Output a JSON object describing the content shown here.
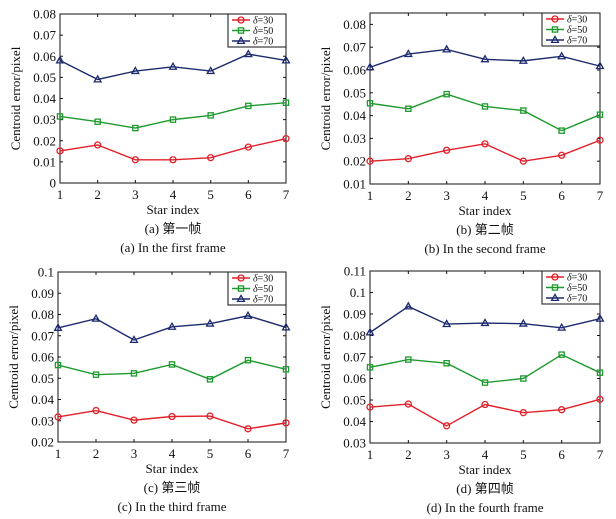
{
  "figure": {
    "series_styles": [
      {
        "name_prefix": "δ",
        "label": "=30",
        "color": "#e0202a",
        "marker": "circle"
      },
      {
        "name_prefix": "δ",
        "label": "=50",
        "color": "#1e9a2e",
        "marker": "square"
      },
      {
        "name_prefix": "δ",
        "label": "=70",
        "color": "#1c2a6e",
        "marker": "triangle"
      }
    ]
  },
  "chart_data": [
    {
      "type": "line",
      "id": "a",
      "caption_cn": "(a) 第一帧",
      "caption_en": "(a) In the first frame",
      "xlabel": "Star index",
      "ylabel": "Centroid error/pixel",
      "x": [
        1,
        2,
        3,
        4,
        5,
        6,
        7
      ],
      "xticks": [
        "1",
        "2",
        "3",
        "4",
        "5",
        "6",
        "7"
      ],
      "ylim": [
        0,
        0.08
      ],
      "yticks": [
        0,
        0.01,
        0.02,
        0.03,
        0.04,
        0.05,
        0.06,
        0.07,
        0.08
      ],
      "ytick_labels": [
        "0",
        "0.01",
        "0.02",
        "0.03",
        "0.04",
        "0.05",
        "0.06",
        "0.07",
        "0.08"
      ],
      "legend_position": "top-right",
      "grid": false,
      "series": [
        {
          "name": "δ=30",
          "values": [
            0.0152,
            0.018,
            0.011,
            0.011,
            0.012,
            0.017,
            0.021
          ]
        },
        {
          "name": "δ=50",
          "values": [
            0.0315,
            0.029,
            0.026,
            0.03,
            0.032,
            0.0365,
            0.038
          ]
        },
        {
          "name": "δ=70",
          "values": [
            0.058,
            0.049,
            0.053,
            0.055,
            0.053,
            0.061,
            0.058
          ]
        }
      ]
    },
    {
      "type": "line",
      "id": "b",
      "caption_cn": "(b) 第二帧",
      "caption_en": "(b) In the second frame",
      "xlabel": "Star index",
      "ylabel": "Centroid error/pixel",
      "x": [
        1,
        2,
        3,
        4,
        5,
        6,
        7
      ],
      "xticks": [
        "1",
        "2",
        "3",
        "4",
        "5",
        "6",
        "7"
      ],
      "ylim": [
        0.01,
        0.085
      ],
      "yticks": [
        0.01,
        0.02,
        0.03,
        0.04,
        0.05,
        0.06,
        0.07,
        0.08
      ],
      "ytick_labels": [
        "0.01",
        "0.02",
        "0.03",
        "0.04",
        "0.05",
        "0.06",
        "0.07",
        "0.08"
      ],
      "legend_position": "top-right",
      "grid": false,
      "series": [
        {
          "name": "δ=30",
          "values": [
            0.02,
            0.0211,
            0.0248,
            0.0276,
            0.02,
            0.0226,
            0.0292
          ]
        },
        {
          "name": "δ=50",
          "values": [
            0.0454,
            0.043,
            0.0494,
            0.044,
            0.0422,
            0.0334,
            0.0404
          ]
        },
        {
          "name": "δ=70",
          "values": [
            0.0612,
            0.067,
            0.069,
            0.0647,
            0.064,
            0.066,
            0.0617
          ]
        }
      ]
    },
    {
      "type": "line",
      "id": "c",
      "caption_cn": "(c) 第三帧",
      "caption_en": "(c) In the third frame",
      "xlabel": "Star index",
      "ylabel": "Centroid error/pixel",
      "x": [
        1,
        2,
        3,
        4,
        5,
        6,
        7
      ],
      "xticks": [
        "1",
        "2",
        "3",
        "4",
        "5",
        "6",
        "7"
      ],
      "ylim": [
        0.02,
        0.1
      ],
      "yticks": [
        0.02,
        0.03,
        0.04,
        0.05,
        0.06,
        0.07,
        0.08,
        0.09,
        0.1
      ],
      "ytick_labels": [
        "0.02",
        "0.03",
        "0.04",
        "0.05",
        "0.06",
        "0.07",
        "0.08",
        "0.09",
        "0.1"
      ],
      "legend_position": "top-right",
      "grid": false,
      "series": [
        {
          "name": "δ=30",
          "values": [
            0.0318,
            0.0348,
            0.0303,
            0.032,
            0.0322,
            0.0262,
            0.029
          ]
        },
        {
          "name": "δ=50",
          "values": [
            0.0562,
            0.0517,
            0.0523,
            0.0565,
            0.0495,
            0.0585,
            0.0542
          ]
        },
        {
          "name": "δ=70",
          "values": [
            0.0737,
            0.078,
            0.068,
            0.0742,
            0.0757,
            0.0794,
            0.0739
          ]
        }
      ]
    },
    {
      "type": "line",
      "id": "d",
      "caption_cn": "(d) 第四帧",
      "caption_en": "(d) In the fourth frame",
      "xlabel": "Star index",
      "ylabel": "Centroid error/pixel",
      "x": [
        1,
        2,
        3,
        4,
        5,
        6,
        7
      ],
      "xticks": [
        "1",
        "2",
        "3",
        "4",
        "5",
        "6",
        "7"
      ],
      "ylim": [
        0.03,
        0.11
      ],
      "yticks": [
        0.03,
        0.04,
        0.05,
        0.06,
        0.07,
        0.08,
        0.09,
        0.1,
        0.11
      ],
      "ytick_labels": [
        "0.03",
        "0.04",
        "0.05",
        "0.06",
        "0.07",
        "0.08",
        "0.09",
        "0.1",
        "0.11"
      ],
      "legend_position": "top-right",
      "grid": false,
      "series": [
        {
          "name": "δ=30",
          "values": [
            0.0467,
            0.0481,
            0.038,
            0.0479,
            0.0441,
            0.0455,
            0.0503
          ]
        },
        {
          "name": "δ=50",
          "values": [
            0.0652,
            0.0688,
            0.0671,
            0.0581,
            0.06,
            0.0711,
            0.0627
          ]
        },
        {
          "name": "δ=70",
          "values": [
            0.0814,
            0.0935,
            0.0853,
            0.0858,
            0.0855,
            0.0836,
            0.0878
          ]
        }
      ]
    }
  ]
}
